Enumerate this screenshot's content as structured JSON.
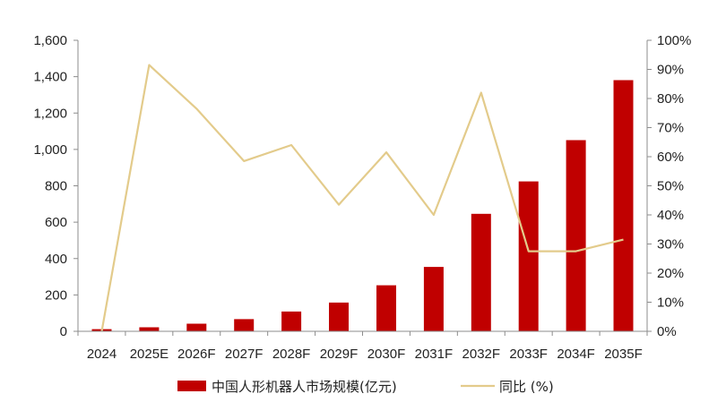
{
  "chart_data": {
    "type": "bar",
    "categories": [
      "2024",
      "2025E",
      "2026F",
      "2027F",
      "2028F",
      "2029F",
      "2030F",
      "2031F",
      "2032F",
      "2033F",
      "2034F",
      "2035F"
    ],
    "series": [
      {
        "name": "中国人形机器人市场规模(亿元)",
        "type": "bar",
        "axis": "left",
        "color": "#C00000",
        "values": [
          12,
          22,
          42,
          67,
          109,
          158,
          253,
          354,
          646,
          824,
          1051,
          1381
        ]
      },
      {
        "name": "同比 (%)",
        "type": "line",
        "axis": "right",
        "color": "#E3CB8B",
        "values": [
          0,
          91.5,
          76.5,
          58.5,
          64,
          43.5,
          61.5,
          40,
          82,
          27.5,
          27.5,
          31.5
        ]
      }
    ],
    "y_left": {
      "min": 0,
      "max": 1600,
      "ticks": [
        "0",
        "200",
        "400",
        "600",
        "800",
        "1,000",
        "1,200",
        "1,400",
        "1,600"
      ],
      "tick_values": [
        0,
        200,
        400,
        600,
        800,
        1000,
        1200,
        1400,
        1600
      ]
    },
    "y_right": {
      "min": 0,
      "max": 100,
      "ticks": [
        "0%",
        "10%",
        "20%",
        "30%",
        "40%",
        "50%",
        "60%",
        "70%",
        "80%",
        "90%",
        "100%"
      ],
      "tick_values": [
        0,
        10,
        20,
        30,
        40,
        50,
        60,
        70,
        80,
        90,
        100
      ]
    },
    "grid": false,
    "legend_position": "bottom-center"
  }
}
